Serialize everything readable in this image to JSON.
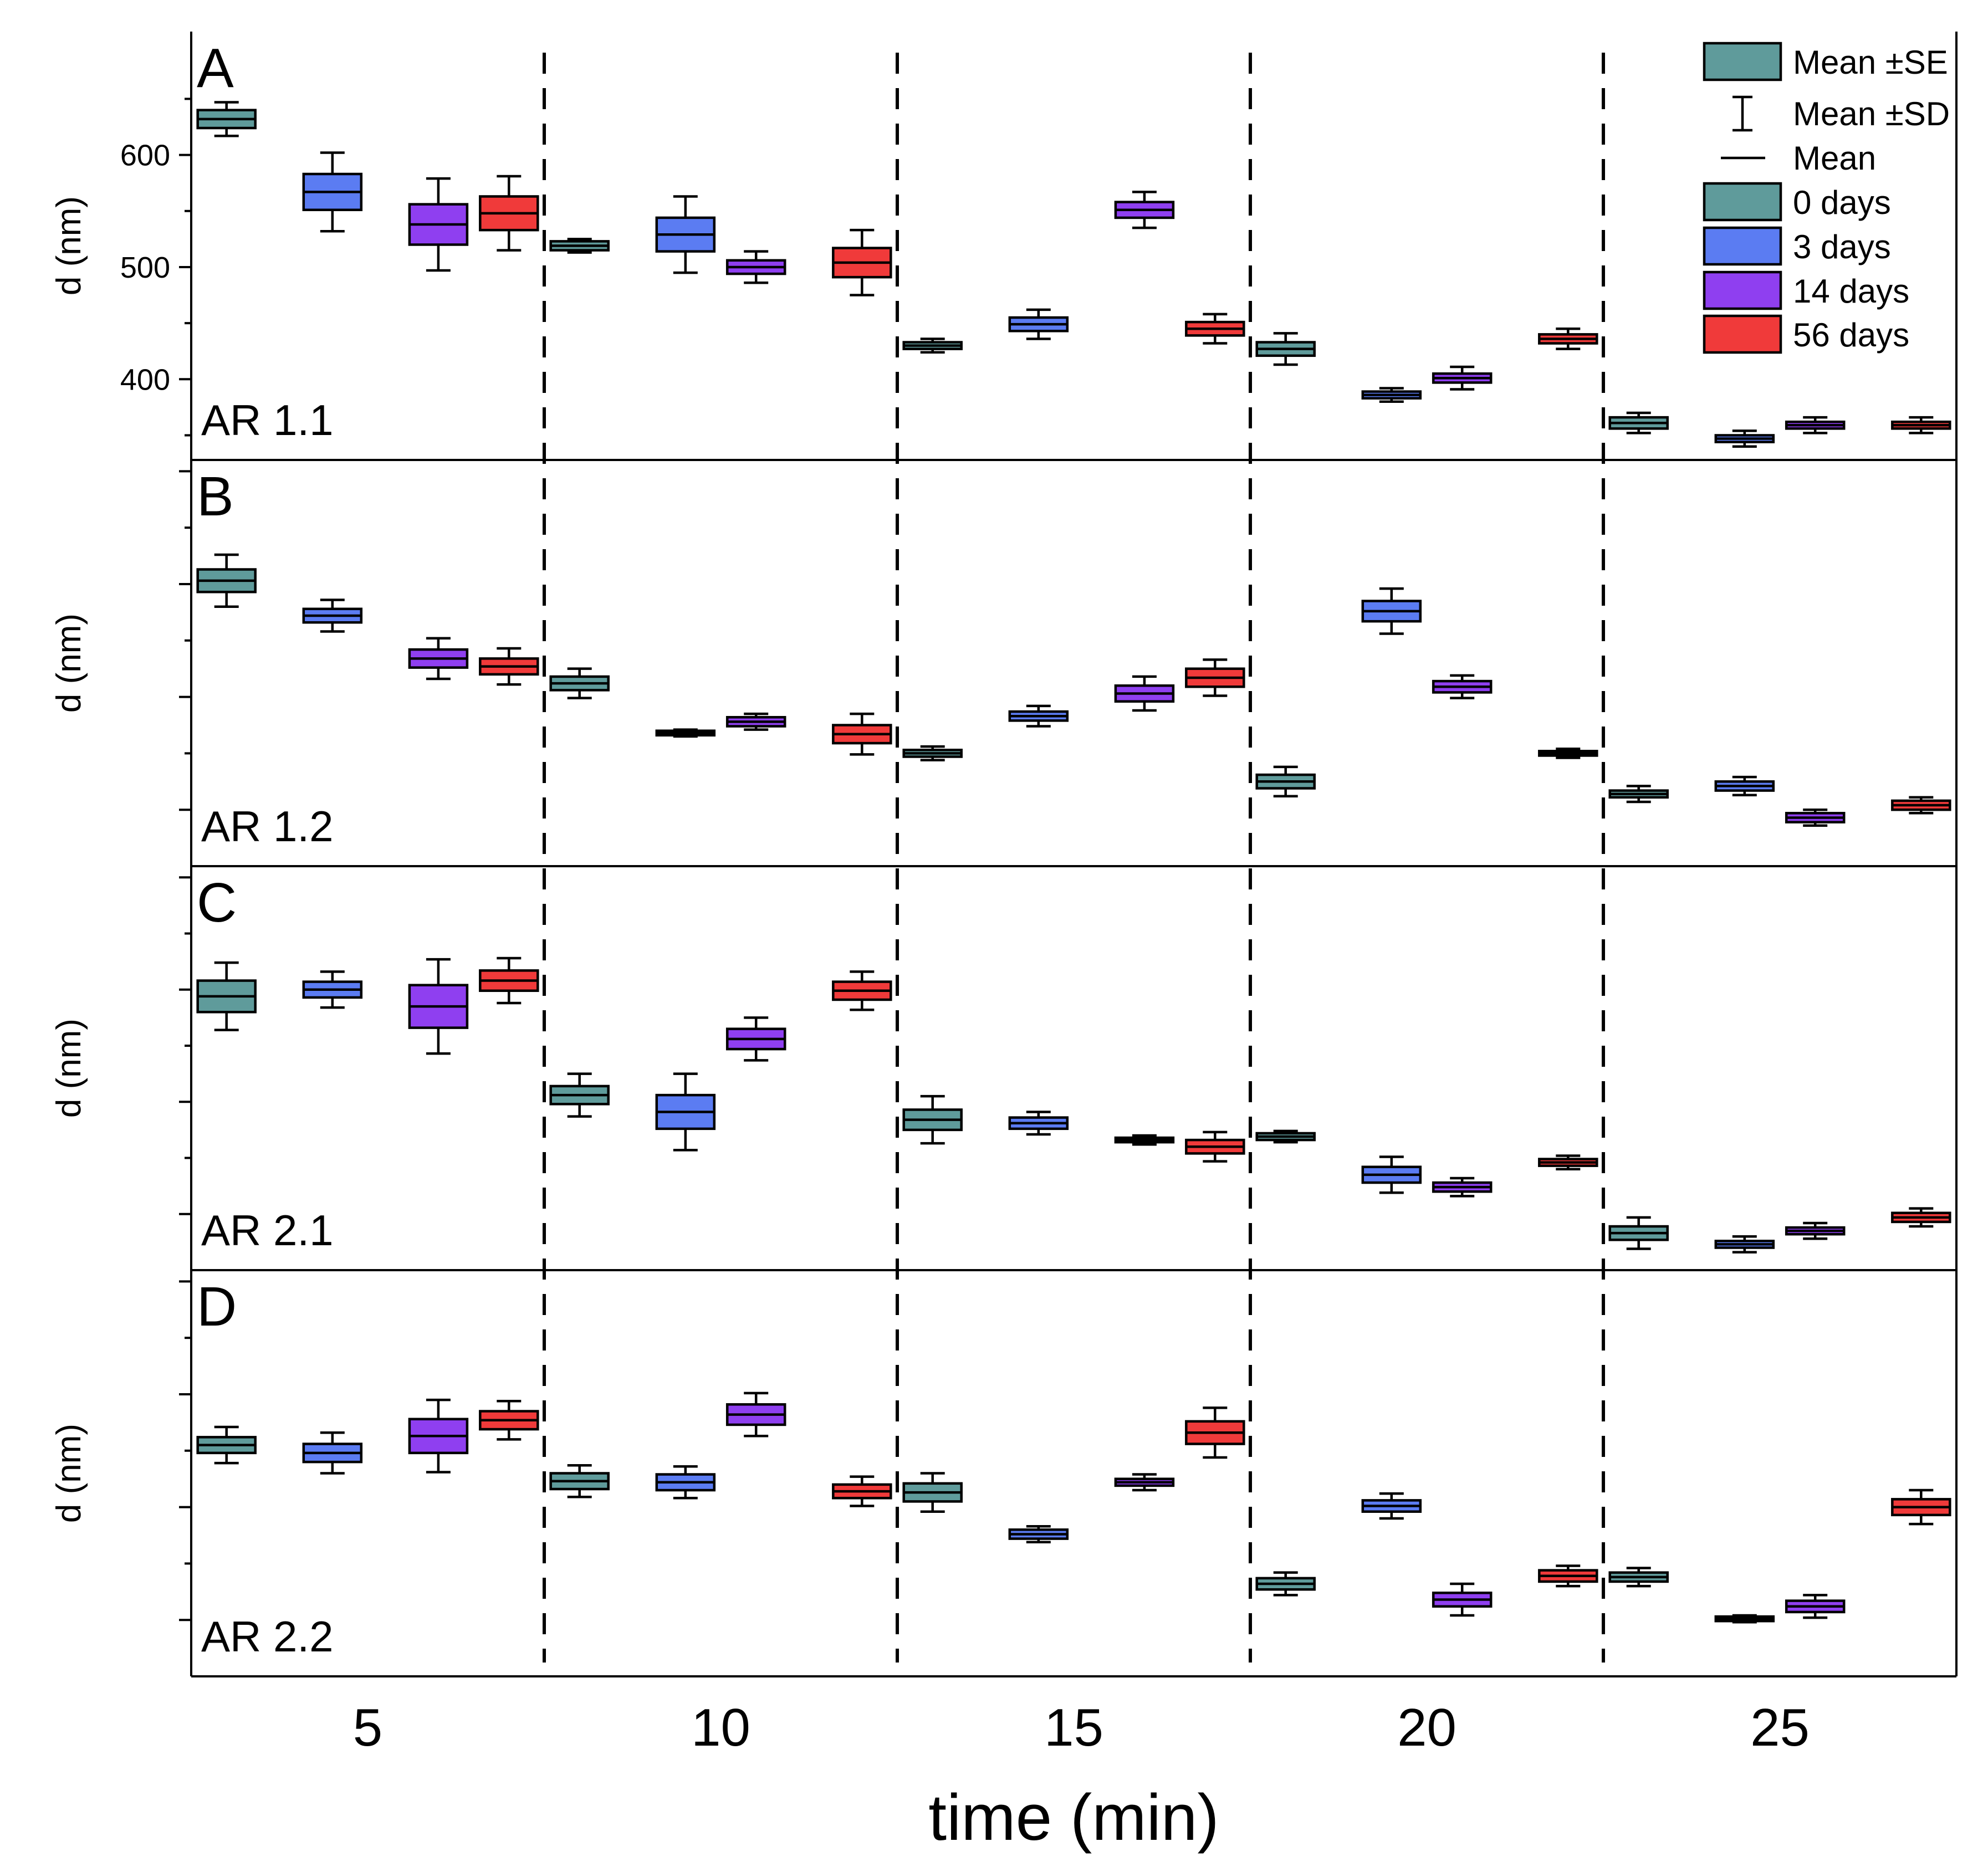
{
  "chart_data": {
    "type": "box",
    "xlabel": "time (min)",
    "x_ticks": [
      5,
      10,
      15,
      20,
      25
    ],
    "x_range": [
      2.5,
      27.5
    ],
    "group_dividers": [
      7.5,
      12.5,
      17.5,
      22.5
    ],
    "series": [
      {
        "name": "0 days",
        "color": "#5f9b9b"
      },
      {
        "name": "3 days",
        "color": "#5b7cf2"
      },
      {
        "name": "14 days",
        "color": "#8f3ff0"
      },
      {
        "name": "56 days",
        "color": "#f03a3a"
      }
    ],
    "legend": {
      "items": [
        {
          "label": "Mean ±SE",
          "kind": "box",
          "color": "#5f9b9b"
        },
        {
          "label": "Mean ±SD",
          "kind": "whisker"
        },
        {
          "label": "Mean",
          "kind": "line"
        },
        {
          "label": "0 days",
          "kind": "swatch",
          "color": "#5f9b9b"
        },
        {
          "label": "3 days",
          "kind": "swatch",
          "color": "#5b7cf2"
        },
        {
          "label": "14 days",
          "kind": "swatch",
          "color": "#8f3ff0"
        },
        {
          "label": "56 days",
          "kind": "swatch",
          "color": "#f03a3a"
        }
      ],
      "position": "top-right"
    },
    "panels": [
      {
        "letter": "A",
        "name": "AR 1.1",
        "ylabel": "d (nm)",
        "ylim": [
          328,
          710
        ],
        "major_ticks": [
          400,
          500,
          600
        ],
        "tick_labels": [
          "400",
          "500",
          "600"
        ],
        "minor_ticks": [
          350,
          450,
          550,
          650
        ],
        "points": [
          {
            "x": 3,
            "series": 0,
            "mean": 632,
            "se": 8,
            "sd": 15
          },
          {
            "x": 4.5,
            "series": 1,
            "mean": 567,
            "se": 16,
            "sd": 35
          },
          {
            "x": 6,
            "series": 2,
            "mean": 538,
            "se": 18,
            "sd": 41
          },
          {
            "x": 7,
            "series": 3,
            "mean": 548,
            "se": 15,
            "sd": 33
          },
          {
            "x": 8,
            "series": 0,
            "mean": 519,
            "se": 4,
            "sd": 6
          },
          {
            "x": 9.5,
            "series": 1,
            "mean": 529,
            "se": 15,
            "sd": 34
          },
          {
            "x": 10.5,
            "series": 2,
            "mean": 500,
            "se": 6,
            "sd": 14
          },
          {
            "x": 12,
            "series": 3,
            "mean": 504,
            "se": 13,
            "sd": 29
          },
          {
            "x": 13,
            "series": 0,
            "mean": 430,
            "se": 3,
            "sd": 6
          },
          {
            "x": 14.5,
            "series": 1,
            "mean": 449,
            "se": 6,
            "sd": 13
          },
          {
            "x": 16,
            "series": 2,
            "mean": 551,
            "se": 7,
            "sd": 16
          },
          {
            "x": 17,
            "series": 3,
            "mean": 445,
            "se": 6,
            "sd": 13
          },
          {
            "x": 18,
            "series": 0,
            "mean": 427,
            "se": 6,
            "sd": 14
          },
          {
            "x": 19.5,
            "series": 1,
            "mean": 386,
            "se": 3,
            "sd": 6
          },
          {
            "x": 20.5,
            "series": 2,
            "mean": 401,
            "se": 4,
            "sd": 10
          },
          {
            "x": 22,
            "series": 3,
            "mean": 436,
            "se": 4,
            "sd": 9
          },
          {
            "x": 23,
            "series": 0,
            "mean": 361,
            "se": 5,
            "sd": 9
          },
          {
            "x": 24.5,
            "series": 1,
            "mean": 347,
            "se": 3,
            "sd": 7
          },
          {
            "x": 25.5,
            "series": 2,
            "mean": 359,
            "se": 3,
            "sd": 7
          },
          {
            "x": 27,
            "series": 3,
            "mean": 359,
            "se": 3,
            "sd": 7
          }
        ]
      },
      {
        "letter": "B",
        "name": "AR 1.2",
        "ylabel": "d (nm)",
        "ylim": [
          0,
          360
        ],
        "major_ticks": [
          50,
          150,
          250,
          350
        ],
        "tick_labels": [
          "",
          "",
          "",
          ""
        ],
        "minor_ticks": [
          100,
          200,
          300
        ],
        "points": [
          {
            "x": 3,
            "series": 0,
            "mean": 253,
            "se": 10,
            "sd": 23
          },
          {
            "x": 4.5,
            "series": 1,
            "mean": 222,
            "se": 6,
            "sd": 14
          },
          {
            "x": 6,
            "series": 2,
            "mean": 184,
            "se": 8,
            "sd": 18
          },
          {
            "x": 7,
            "series": 3,
            "mean": 177,
            "se": 7,
            "sd": 16
          },
          {
            "x": 8,
            "series": 0,
            "mean": 162,
            "se": 6,
            "sd": 13
          },
          {
            "x": 9.5,
            "series": 1,
            "mean": 118,
            "se": 2,
            "sd": 3
          },
          {
            "x": 10.5,
            "series": 2,
            "mean": 128,
            "se": 4,
            "sd": 7
          },
          {
            "x": 12,
            "series": 3,
            "mean": 117,
            "se": 8,
            "sd": 18
          },
          {
            "x": 13,
            "series": 0,
            "mean": 100,
            "se": 3,
            "sd": 6
          },
          {
            "x": 14.5,
            "series": 1,
            "mean": 133,
            "se": 4,
            "sd": 9
          },
          {
            "x": 16,
            "series": 2,
            "mean": 153,
            "se": 7,
            "sd": 15
          },
          {
            "x": 17,
            "series": 3,
            "mean": 167,
            "se": 8,
            "sd": 16
          },
          {
            "x": 18,
            "series": 0,
            "mean": 75,
            "se": 6,
            "sd": 13
          },
          {
            "x": 19.5,
            "series": 1,
            "mean": 226,
            "se": 9,
            "sd": 20
          },
          {
            "x": 20.5,
            "series": 2,
            "mean": 159,
            "se": 5,
            "sd": 10
          },
          {
            "x": 22,
            "series": 3,
            "mean": 100,
            "se": 2,
            "sd": 4
          },
          {
            "x": 23,
            "series": 0,
            "mean": 64,
            "se": 3,
            "sd": 7
          },
          {
            "x": 24.5,
            "series": 1,
            "mean": 71,
            "se": 4,
            "sd": 8
          },
          {
            "x": 25.5,
            "series": 2,
            "mean": 43,
            "se": 4,
            "sd": 7
          },
          {
            "x": 27,
            "series": 3,
            "mean": 54,
            "se": 4,
            "sd": 7
          }
        ]
      },
      {
        "letter": "C",
        "name": "AR 2.1",
        "ylabel": "d (nm)",
        "ylim": [
          0,
          360
        ],
        "major_ticks": [
          50,
          150,
          250,
          350
        ],
        "tick_labels": [
          "",
          "",
          "",
          ""
        ],
        "minor_ticks": [
          100,
          200,
          300
        ],
        "points": [
          {
            "x": 3,
            "series": 0,
            "mean": 244,
            "se": 14,
            "sd": 30
          },
          {
            "x": 4.5,
            "series": 1,
            "mean": 250,
            "se": 7,
            "sd": 16
          },
          {
            "x": 6,
            "series": 2,
            "mean": 235,
            "se": 19,
            "sd": 42
          },
          {
            "x": 7,
            "series": 3,
            "mean": 258,
            "se": 9,
            "sd": 20
          },
          {
            "x": 8,
            "series": 0,
            "mean": 156,
            "se": 8,
            "sd": 19
          },
          {
            "x": 9.5,
            "series": 1,
            "mean": 141,
            "se": 15,
            "sd": 34
          },
          {
            "x": 10.5,
            "series": 2,
            "mean": 206,
            "se": 9,
            "sd": 19
          },
          {
            "x": 12,
            "series": 3,
            "mean": 249,
            "se": 8,
            "sd": 17
          },
          {
            "x": 13,
            "series": 0,
            "mean": 134,
            "se": 9,
            "sd": 21
          },
          {
            "x": 14.5,
            "series": 1,
            "mean": 131,
            "se": 5,
            "sd": 10
          },
          {
            "x": 16,
            "series": 2,
            "mean": 116,
            "se": 2,
            "sd": 4
          },
          {
            "x": 17,
            "series": 3,
            "mean": 110,
            "se": 6,
            "sd": 13
          },
          {
            "x": 18,
            "series": 0,
            "mean": 119,
            "se": 3,
            "sd": 5
          },
          {
            "x": 19.5,
            "series": 1,
            "mean": 85,
            "se": 7,
            "sd": 16
          },
          {
            "x": 20.5,
            "series": 2,
            "mean": 74,
            "se": 4,
            "sd": 8
          },
          {
            "x": 22,
            "series": 3,
            "mean": 96,
            "se": 3,
            "sd": 6
          },
          {
            "x": 23,
            "series": 0,
            "mean": 33,
            "se": 6,
            "sd": 14
          },
          {
            "x": 24.5,
            "series": 1,
            "mean": 23,
            "se": 3,
            "sd": 7
          },
          {
            "x": 25.5,
            "series": 2,
            "mean": 35,
            "se": 3,
            "sd": 7
          },
          {
            "x": 27,
            "series": 3,
            "mean": 47,
            "se": 4,
            "sd": 8
          }
        ]
      },
      {
        "letter": "D",
        "name": "AR 2.2",
        "ylabel": "d (nm)",
        "ylim": [
          0,
          360
        ],
        "major_ticks": [
          50,
          150,
          250,
          350
        ],
        "tick_labels": [
          "",
          "",
          "",
          ""
        ],
        "minor_ticks": [
          100,
          200,
          300
        ],
        "points": [
          {
            "x": 3,
            "series": 0,
            "mean": 205,
            "se": 7,
            "sd": 16
          },
          {
            "x": 4.5,
            "series": 1,
            "mean": 198,
            "se": 8,
            "sd": 18
          },
          {
            "x": 6,
            "series": 2,
            "mean": 213,
            "se": 15,
            "sd": 32
          },
          {
            "x": 7,
            "series": 3,
            "mean": 227,
            "se": 8,
            "sd": 17
          },
          {
            "x": 8,
            "series": 0,
            "mean": 173,
            "se": 7,
            "sd": 14
          },
          {
            "x": 9.5,
            "series": 1,
            "mean": 172,
            "se": 7,
            "sd": 14
          },
          {
            "x": 10.5,
            "series": 2,
            "mean": 232,
            "se": 9,
            "sd": 19
          },
          {
            "x": 12,
            "series": 3,
            "mean": 164,
            "se": 6,
            "sd": 13
          },
          {
            "x": 13,
            "series": 0,
            "mean": 163,
            "se": 8,
            "sd": 17
          },
          {
            "x": 14.5,
            "series": 1,
            "mean": 126,
            "se": 4,
            "sd": 7
          },
          {
            "x": 16,
            "series": 2,
            "mean": 172,
            "se": 3,
            "sd": 7
          },
          {
            "x": 17,
            "series": 3,
            "mean": 216,
            "se": 10,
            "sd": 22
          },
          {
            "x": 18,
            "series": 0,
            "mean": 82,
            "se": 5,
            "sd": 10
          },
          {
            "x": 19.5,
            "series": 1,
            "mean": 151,
            "se": 5,
            "sd": 11
          },
          {
            "x": 20.5,
            "series": 2,
            "mean": 68,
            "se": 6,
            "sd": 14
          },
          {
            "x": 22,
            "series": 3,
            "mean": 89,
            "se": 5,
            "sd": 9
          },
          {
            "x": 23,
            "series": 0,
            "mean": 88,
            "se": 4,
            "sd": 8
          },
          {
            "x": 24.5,
            "series": 1,
            "mean": 51,
            "se": 2,
            "sd": 3
          },
          {
            "x": 25.5,
            "series": 2,
            "mean": 62,
            "se": 5,
            "sd": 10
          },
          {
            "x": 27,
            "series": 3,
            "mean": 150,
            "se": 7,
            "sd": 15
          }
        ]
      }
    ]
  }
}
